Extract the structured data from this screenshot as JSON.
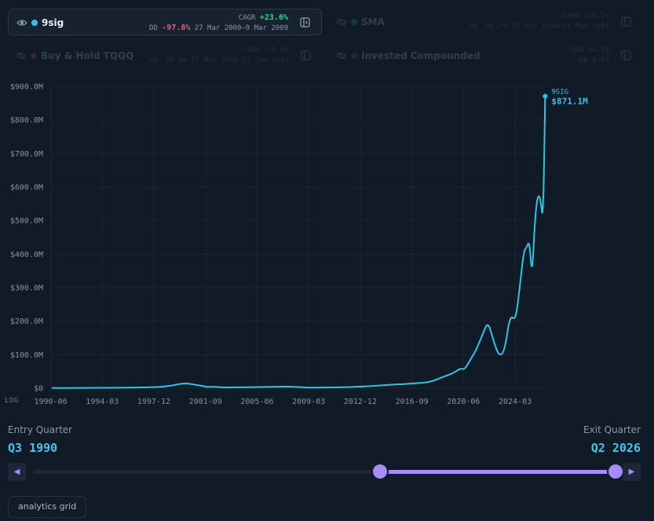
{
  "legend": [
    {
      "name": "9sig",
      "color": "#2ec4e6",
      "active": true,
      "cagr_label": "CAGR",
      "cagr": "+23.6%",
      "dd_label": "DD",
      "dd": "-97.8%",
      "dd_range": "27 Mar 2000–9 Mar 2009"
    },
    {
      "name": "SMA",
      "color": "#3fd18a",
      "active": false,
      "cagr_label": "CAGR",
      "cagr": "+26.3%",
      "dd_label": "DD",
      "dd": "-86.7%",
      "dd_range": "27 Mar 2000–11 Mar 2003"
    },
    {
      "name": "Buy & Hold TQQQ",
      "color": "#f05b6b",
      "active": false,
      "cagr_label": "CAGR",
      "cagr": "+20.8%",
      "dd_label": "DD",
      "dd": "-99.9%",
      "dd_range": "27 Mar 2000–23 Jan 2002"
    },
    {
      "name": "Invested Compounded",
      "color": "#6b7a90",
      "active": false,
      "cagr_label": "CAGR",
      "cagr": "+4.1%",
      "dd_label": "DD",
      "dd": "0.0%",
      "dd_range": ""
    }
  ],
  "chart_data": {
    "type": "line",
    "y_ticks": [
      "$0",
      "$100.0M",
      "$200.0M",
      "$300.0M",
      "$400.0M",
      "$500.0M",
      "$600.0M",
      "$700.0M",
      "$800.0M",
      "$900.0M"
    ],
    "x_ticks": [
      "1990-06",
      "1994-03",
      "1997-12",
      "2001-09",
      "2005-06",
      "2009-03",
      "2012-12",
      "2016-09",
      "2020-06",
      "2024-03"
    ],
    "x_range": [
      1990.5,
      2026.5
    ],
    "ylim": [
      0,
      900
    ],
    "log_label": "LOG",
    "grid": true,
    "series": [
      {
        "name": "9sig",
        "color": "#2ec4e6",
        "end_label": "9SIG",
        "end_value_label": "$871.1M",
        "points": [
          [
            1990.5,
            0.5
          ],
          [
            1993,
            0.8
          ],
          [
            1996,
            1.5
          ],
          [
            1998,
            3
          ],
          [
            1999,
            6
          ],
          [
            1999.7,
            12
          ],
          [
            2000.25,
            15
          ],
          [
            2000.8,
            11
          ],
          [
            2001.3,
            8
          ],
          [
            2001.8,
            3
          ],
          [
            2002.3,
            5
          ],
          [
            2002.8,
            2
          ],
          [
            2003.5,
            2.5
          ],
          [
            2005,
            3
          ],
          [
            2006.5,
            4
          ],
          [
            2007.5,
            5
          ],
          [
            2008.3,
            4
          ],
          [
            2009.2,
            1.5
          ],
          [
            2010.5,
            2
          ],
          [
            2012,
            3
          ],
          [
            2013,
            5
          ],
          [
            2014,
            7
          ],
          [
            2015,
            10
          ],
          [
            2016,
            12
          ],
          [
            2017,
            15
          ],
          [
            2018,
            18
          ],
          [
            2019,
            35
          ],
          [
            2019.7,
            45
          ],
          [
            2020.2,
            60
          ],
          [
            2020.5,
            55
          ],
          [
            2020.9,
            85
          ],
          [
            2021.3,
            110
          ],
          [
            2021.8,
            160
          ],
          [
            2022.2,
            200
          ],
          [
            2022.6,
            140
          ],
          [
            2023,
            95
          ],
          [
            2023.4,
            110
          ],
          [
            2023.8,
            220
          ],
          [
            2024.2,
            200
          ],
          [
            2024.5,
            300
          ],
          [
            2024.8,
            410
          ],
          [
            2025,
            420
          ],
          [
            2025.2,
            440
          ],
          [
            2025.4,
            330
          ],
          [
            2025.6,
            500
          ],
          [
            2025.8,
            575
          ],
          [
            2026,
            570
          ],
          [
            2026.2,
            490
          ],
          [
            2026.35,
            871.1
          ]
        ]
      }
    ]
  },
  "controls": {
    "entry_label": "Entry Quarter",
    "entry_value": "Q3 1990",
    "exit_label": "Exit Quarter",
    "exit_value": "Q2 2026",
    "range_start": 0.59,
    "range_end": 1.0,
    "prev_arrow": "◀",
    "next_arrow": "▶",
    "grid_button": "analytics grid"
  }
}
